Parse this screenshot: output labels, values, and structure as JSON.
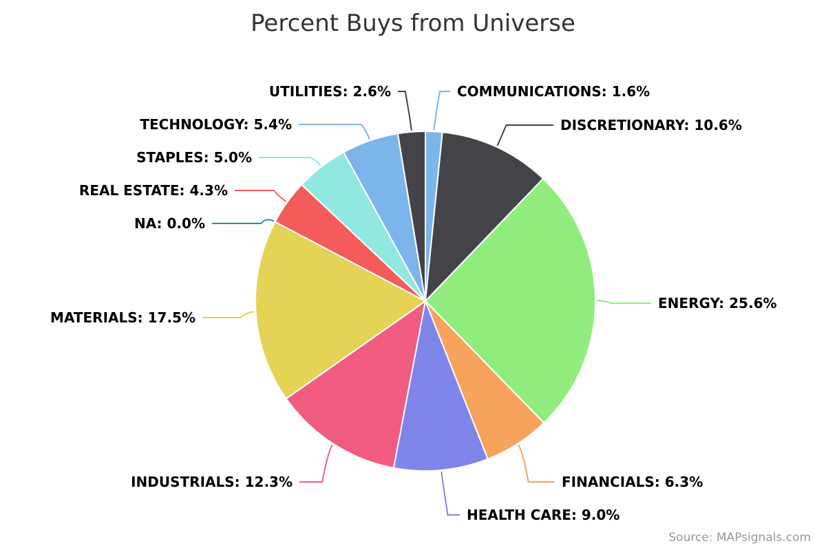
{
  "chart_data": {
    "type": "pie",
    "title": "Percent Buys from Universe",
    "slices": [
      {
        "label": "COMMUNICATIONS",
        "value": 1.6,
        "display": "1.6%",
        "color": "#7cb5ec"
      },
      {
        "label": "DISCRETIONARY",
        "value": 10.6,
        "display": "10.6%",
        "color": "#434348"
      },
      {
        "label": "ENERGY",
        "value": 25.6,
        "display": "25.6%",
        "color": "#90ed7d"
      },
      {
        "label": "FINANCIALS",
        "value": 6.3,
        "display": "6.3%",
        "color": "#f7a35c"
      },
      {
        "label": "HEALTH CARE",
        "value": 9.0,
        "display": "9.0%",
        "color": "#8085e9"
      },
      {
        "label": "INDUSTRIALS",
        "value": 12.3,
        "display": "12.3%",
        "color": "#f15c80"
      },
      {
        "label": "MATERIALS",
        "value": 17.5,
        "display": "17.5%",
        "color": "#e4d354"
      },
      {
        "label": "NA",
        "value": 0.0,
        "display": "0.0%",
        "color": "#2b908f"
      },
      {
        "label": "REAL ESTATE",
        "value": 4.3,
        "display": "4.3%",
        "color": "#f45b5b"
      },
      {
        "label": "STAPLES",
        "value": 5.0,
        "display": "5.0%",
        "color": "#91e8e1"
      },
      {
        "label": "TECHNOLOGY",
        "value": 5.4,
        "display": "5.4%",
        "color": "#7cb5ec"
      },
      {
        "label": "UTILITIES",
        "value": 2.6,
        "display": "2.6%",
        "color": "#434348"
      }
    ],
    "slice_border_color": "#ffffff"
  },
  "credits": {
    "text": "Source: MAPsignals.com"
  }
}
